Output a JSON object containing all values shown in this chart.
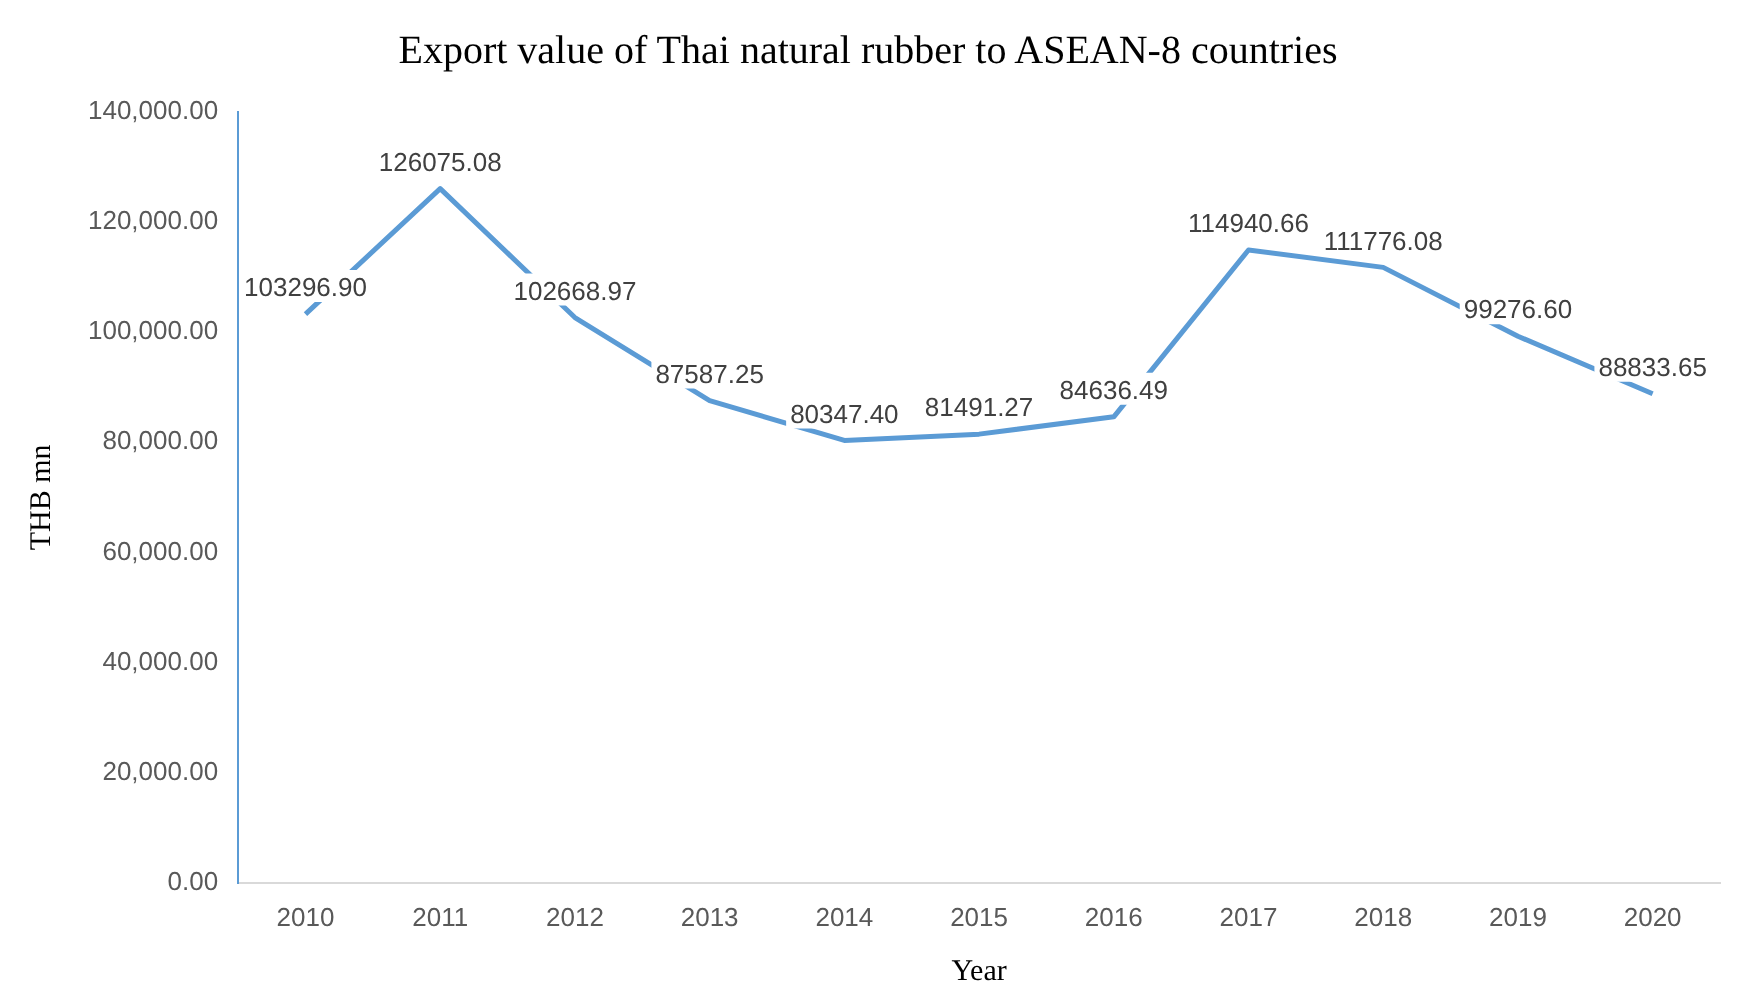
{
  "chart_data": {
    "type": "line",
    "title": "Export value of Thai natural rubber to ASEAN-8 countries",
    "xlabel": "Year",
    "ylabel": "THB mn",
    "categories": [
      "2010",
      "2011",
      "2012",
      "2013",
      "2014",
      "2015",
      "2016",
      "2017",
      "2018",
      "2019",
      "2020"
    ],
    "series": [
      {
        "color": "#5b9bd5",
        "values": [
          103296.9,
          126075.08,
          102668.97,
          87587.25,
          80347.4,
          81491.27,
          84636.49,
          114940.66,
          111776.08,
          99276.6,
          88833.65
        ],
        "value_labels": [
          "103296.90",
          "126075.08",
          "102668.97",
          "87587.25",
          "80347.40",
          "81491.27",
          "84636.49",
          "114940.66",
          "111776.08",
          "99276.60",
          "88833.65"
        ]
      }
    ],
    "ylim": [
      0,
      140000
    ],
    "yticks": [
      {
        "value": 0,
        "label": "0.00"
      },
      {
        "value": 20000,
        "label": "20,000.00"
      },
      {
        "value": 40000,
        "label": "40,000.00"
      },
      {
        "value": 60000,
        "label": "60,000.00"
      },
      {
        "value": 80000,
        "label": "80,000.00"
      },
      {
        "value": 100000,
        "label": "100,000.00"
      },
      {
        "value": 120000,
        "label": "120,000.00"
      },
      {
        "value": 140000,
        "label": "140,000.00"
      }
    ],
    "grid": false,
    "legend": false,
    "marker": "none",
    "line_style": "solid"
  }
}
